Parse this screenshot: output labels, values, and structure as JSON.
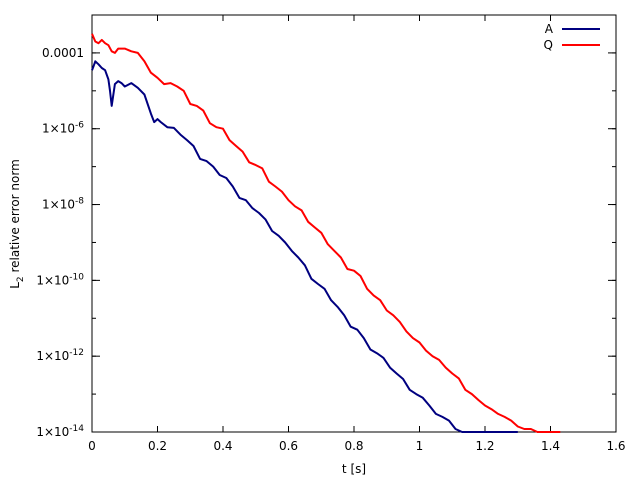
{
  "chart_data": {
    "type": "line",
    "title": "",
    "xlabel": "t [s]",
    "ylabel_main": "L",
    "ylabel_sub": "2",
    "ylabel_rest": " relative error norm",
    "xlim": [
      0,
      1.6
    ],
    "ylim": [
      1e-14,
      0.001
    ],
    "yscale": "log",
    "grid": false,
    "legend_position": "top-right",
    "x_ticks": [
      {
        "value": 0,
        "label": "0"
      },
      {
        "value": 0.2,
        "label": "0.2"
      },
      {
        "value": 0.4,
        "label": "0.4"
      },
      {
        "value": 0.6,
        "label": "0.6"
      },
      {
        "value": 0.8,
        "label": "0.8"
      },
      {
        "value": 1.0,
        "label": "1"
      },
      {
        "value": 1.2,
        "label": "1.2"
      },
      {
        "value": 1.4,
        "label": "1.4"
      },
      {
        "value": 1.6,
        "label": "1.6"
      }
    ],
    "y_ticks": [
      {
        "value": 0.0001,
        "base": "0.0001",
        "exp": ""
      },
      {
        "value": 1e-06,
        "base": "1×10",
        "exp": "-6"
      },
      {
        "value": 1e-08,
        "base": "1×10",
        "exp": "-8"
      },
      {
        "value": 1e-10,
        "base": "1×10",
        "exp": "-10"
      },
      {
        "value": 1e-12,
        "base": "1×10",
        "exp": "-12"
      },
      {
        "value": 1e-14,
        "base": "1×10",
        "exp": "-14"
      }
    ],
    "series": [
      {
        "name": "A",
        "color": "#000080",
        "x": [
          0,
          0.005,
          0.01,
          0.02,
          0.03,
          0.04,
          0.05,
          0.055,
          0.06,
          0.07,
          0.08,
          0.09,
          0.1,
          0.12,
          0.14,
          0.16,
          0.18,
          0.19,
          0.2,
          0.21,
          0.23,
          0.25,
          0.27,
          0.29,
          0.31,
          0.33,
          0.35,
          0.37,
          0.39,
          0.41,
          0.43,
          0.45,
          0.47,
          0.49,
          0.51,
          0.53,
          0.55,
          0.57,
          0.59,
          0.61,
          0.63,
          0.65,
          0.67,
          0.69,
          0.71,
          0.73,
          0.75,
          0.77,
          0.79,
          0.81,
          0.83,
          0.85,
          0.87,
          0.89,
          0.91,
          0.93,
          0.95,
          0.97,
          0.99,
          1.01,
          1.03,
          1.05,
          1.07,
          1.09,
          1.11,
          1.13,
          1.15,
          1.17,
          1.19,
          1.21,
          1.23,
          1.25,
          1.3
        ],
        "y": [
          3.5e-05,
          4.5e-05,
          6e-05,
          5e-05,
          4e-05,
          3.5e-05,
          2e-05,
          1e-05,
          4e-06,
          1.5e-05,
          1.8e-05,
          1.6e-05,
          1.3e-05,
          1.6e-05,
          1.2e-05,
          8e-06,
          2.5e-06,
          1.5e-06,
          1.8e-06,
          1.5e-06,
          1.1e-06,
          1.05e-06,
          7e-07,
          5e-07,
          3.5e-07,
          1.6e-07,
          1.4e-07,
          1e-07,
          6e-08,
          5e-08,
          3e-08,
          1.5e-08,
          1.3e-08,
          8e-09,
          6e-09,
          4e-09,
          2e-09,
          1.5e-09,
          1e-09,
          6e-10,
          4e-10,
          2.5e-10,
          1.1e-10,
          8e-11,
          6e-11,
          3e-11,
          2e-11,
          1.2e-11,
          6e-12,
          5e-12,
          3e-12,
          1.5e-12,
          1.2e-12,
          9e-13,
          5e-13,
          3.5e-13,
          2.5e-13,
          1.3e-13,
          1e-13,
          8e-14,
          5e-14,
          3e-14,
          2.5e-14,
          2e-14,
          1.2e-14,
          1e-14,
          1e-14,
          1e-14,
          1e-14,
          1e-14,
          1e-14,
          1e-14,
          1e-14
        ]
      },
      {
        "name": "Q",
        "color": "#ff0000",
        "x": [
          0,
          0.01,
          0.02,
          0.03,
          0.04,
          0.05,
          0.06,
          0.07,
          0.08,
          0.1,
          0.12,
          0.14,
          0.16,
          0.18,
          0.2,
          0.22,
          0.24,
          0.26,
          0.28,
          0.3,
          0.32,
          0.34,
          0.36,
          0.38,
          0.4,
          0.42,
          0.44,
          0.46,
          0.48,
          0.5,
          0.52,
          0.54,
          0.56,
          0.58,
          0.6,
          0.62,
          0.64,
          0.66,
          0.68,
          0.7,
          0.72,
          0.74,
          0.76,
          0.78,
          0.8,
          0.82,
          0.84,
          0.86,
          0.88,
          0.9,
          0.92,
          0.94,
          0.96,
          0.98,
          1.0,
          1.02,
          1.04,
          1.06,
          1.08,
          1.1,
          1.12,
          1.14,
          1.16,
          1.18,
          1.2,
          1.22,
          1.24,
          1.26,
          1.28,
          1.3,
          1.32,
          1.34,
          1.36,
          1.38,
          1.4,
          1.43
        ],
        "y": [
          0.00032,
          0.0002,
          0.00018,
          0.00022,
          0.00018,
          0.00016,
          0.00011,
          0.0001,
          0.00013,
          0.00013,
          0.00011,
          0.0001,
          6e-05,
          3e-05,
          2.2e-05,
          1.5e-05,
          1.6e-05,
          1.3e-05,
          1e-05,
          4.5e-06,
          4e-06,
          3e-06,
          1.4e-06,
          1.1e-06,
          1e-06,
          5e-07,
          3.5e-07,
          2.5e-07,
          1.3e-07,
          1.1e-07,
          9e-08,
          4e-08,
          3e-08,
          2.2e-08,
          1.3e-08,
          9e-09,
          7e-09,
          3.5e-09,
          2.5e-09,
          1.8e-09,
          9e-10,
          6e-10,
          4e-10,
          2e-10,
          1.8e-10,
          1.3e-10,
          6e-11,
          4e-11,
          3e-11,
          1.6e-11,
          1.2e-11,
          8e-12,
          4.5e-12,
          3e-12,
          2.3e-12,
          1.4e-12,
          1e-12,
          8e-13,
          5e-13,
          3.5e-13,
          2.6e-13,
          1.3e-13,
          1e-13,
          7e-14,
          5e-14,
          4e-14,
          3e-14,
          2.5e-14,
          2e-14,
          1.4e-14,
          1.2e-14,
          1.2e-14,
          1e-14,
          1e-14,
          1e-14,
          1e-14
        ]
      }
    ]
  }
}
